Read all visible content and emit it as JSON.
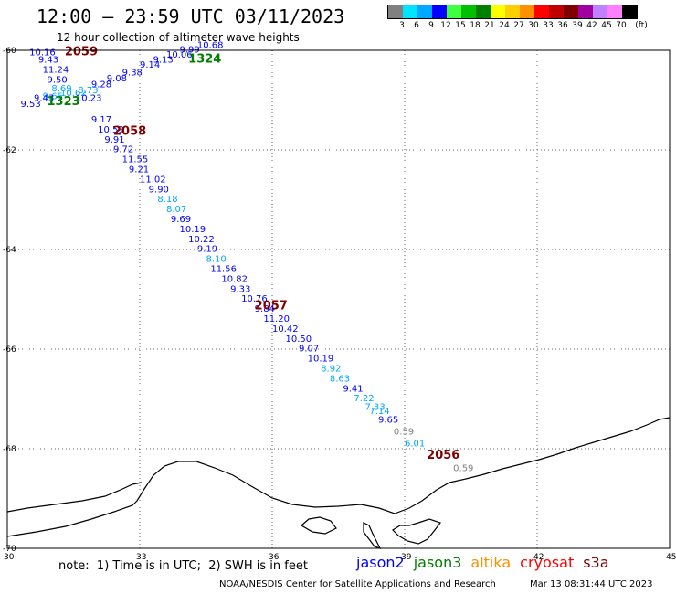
{
  "header": {
    "title": "12:00 – 23:59 UTC 03/11/2023",
    "subtitle": "12 hour collection of altimeter wave heights"
  },
  "legend": {
    "unit": "(ft)",
    "bins": [
      {
        "label": "",
        "color": "#808080"
      },
      {
        "label": "3",
        "color": "#00e5ff"
      },
      {
        "label": "6",
        "color": "#00a8ff"
      },
      {
        "label": "9",
        "color": "#0000ff"
      },
      {
        "label": "12",
        "color": "#40ff40"
      },
      {
        "label": "15",
        "color": "#00c000"
      },
      {
        "label": "18",
        "color": "#008000"
      },
      {
        "label": "21",
        "color": "#ffff00"
      },
      {
        "label": "24",
        "color": "#ffd000"
      },
      {
        "label": "27",
        "color": "#ff9000"
      },
      {
        "label": "30",
        "color": "#ff0000"
      },
      {
        "label": "33",
        "color": "#c00000"
      },
      {
        "label": "36",
        "color": "#800000"
      },
      {
        "label": "39",
        "color": "#a000a0"
      },
      {
        "label": "42",
        "color": "#c080ff"
      },
      {
        "label": "45",
        "color": "#ff80ff"
      },
      {
        "label": "70",
        "color": "#000000"
      }
    ]
  },
  "axes": {
    "lat_labels": [
      "-60",
      "-62",
      "-64",
      "-66",
      "-68",
      "-70"
    ],
    "lon_labels": [
      "30",
      "33",
      "36",
      "39",
      "42",
      "45"
    ]
  },
  "map_extent": {
    "lon": [
      30,
      45
    ],
    "lat": [
      -70,
      -60
    ]
  },
  "pass_labels": [
    {
      "text": "2059",
      "lon": 31.3,
      "lat": -60.1,
      "color": "#800000"
    },
    {
      "text": "1324",
      "lon": 34.1,
      "lat": -60.25,
      "color": "#008000"
    },
    {
      "text": "2058",
      "lon": 32.4,
      "lat": -61.7,
      "color": "#800000"
    },
    {
      "text": "1323",
      "lon": 30.9,
      "lat": -61.1,
      "color": "#008000"
    },
    {
      "text": "2057",
      "lon": 35.6,
      "lat": -65.2,
      "color": "#800000"
    },
    {
      "text": "2056",
      "lon": 39.5,
      "lat": -68.2,
      "color": "#800000"
    }
  ],
  "wave_heights": [
    {
      "v": "10.68",
      "lon": 34.3,
      "lat": -59.95,
      "color": "#0000ff"
    },
    {
      "v": "9.99",
      "lon": 33.9,
      "lat": -60.05,
      "color": "#0000ff"
    },
    {
      "v": "10.06",
      "lon": 33.6,
      "lat": -60.15,
      "color": "#0000ff"
    },
    {
      "v": "9.13",
      "lon": 33.3,
      "lat": -60.25,
      "color": "#0000ff"
    },
    {
      "v": "9.14",
      "lon": 33.0,
      "lat": -60.35,
      "color": "#0000ff"
    },
    {
      "v": "9.38",
      "lon": 32.6,
      "lat": -60.5,
      "color": "#0000ff"
    },
    {
      "v": "9.08",
      "lon": 32.25,
      "lat": -60.62,
      "color": "#0000ff"
    },
    {
      "v": "9.28",
      "lon": 31.9,
      "lat": -60.74,
      "color": "#0000ff"
    },
    {
      "v": "8.73",
      "lon": 31.6,
      "lat": -60.86,
      "color": "#00a8ff"
    },
    {
      "v": "10.62",
      "lon": 31.2,
      "lat": -60.92,
      "color": "#00a8ff"
    },
    {
      "v": "10.16",
      "lon": 30.5,
      "lat": -60.1,
      "color": "#0000ff"
    },
    {
      "v": "9.43",
      "lon": 30.7,
      "lat": -60.25,
      "color": "#0000ff"
    },
    {
      "v": "11.24",
      "lon": 30.8,
      "lat": -60.45,
      "color": "#0000ff"
    },
    {
      "v": "9.50",
      "lon": 30.9,
      "lat": -60.65,
      "color": "#0000ff"
    },
    {
      "v": "8.69",
      "lon": 31.0,
      "lat": -60.83,
      "color": "#00a8ff"
    },
    {
      "v": "9.65",
      "lon": 30.8,
      "lat": -60.98,
      "color": "#00a8ff"
    },
    {
      "v": "10.23",
      "lon": 31.55,
      "lat": -61.02,
      "color": "#0000ff"
    },
    {
      "v": "9.43",
      "lon": 30.6,
      "lat": -61.02,
      "color": "#0000ff"
    },
    {
      "v": "9.53",
      "lon": 30.3,
      "lat": -61.14,
      "color": "#0000ff"
    },
    {
      "v": "9.17",
      "lon": 31.9,
      "lat": -61.45,
      "color": "#0000ff"
    },
    {
      "v": "10.59",
      "lon": 32.05,
      "lat": -61.65,
      "color": "#0000ff"
    },
    {
      "v": "9.91",
      "lon": 32.2,
      "lat": -61.85,
      "color": "#0000ff"
    },
    {
      "v": "9.72",
      "lon": 32.4,
      "lat": -62.05,
      "color": "#0000ff"
    },
    {
      "v": "11.55",
      "lon": 32.6,
      "lat": -62.25,
      "color": "#0000ff"
    },
    {
      "v": "9.21",
      "lon": 32.75,
      "lat": -62.45,
      "color": "#0000ff"
    },
    {
      "v": "11.02",
      "lon": 33.0,
      "lat": -62.65,
      "color": "#0000ff"
    },
    {
      "v": "9.90",
      "lon": 33.2,
      "lat": -62.85,
      "color": "#0000ff"
    },
    {
      "v": "8.18",
      "lon": 33.4,
      "lat": -63.05,
      "color": "#00a8ff"
    },
    {
      "v": "8.07",
      "lon": 33.6,
      "lat": -63.25,
      "color": "#00a8ff"
    },
    {
      "v": "9.69",
      "lon": 33.7,
      "lat": -63.45,
      "color": "#0000ff"
    },
    {
      "v": "10.19",
      "lon": 33.9,
      "lat": -63.65,
      "color": "#0000ff"
    },
    {
      "v": "10.22",
      "lon": 34.1,
      "lat": -63.85,
      "color": "#0000ff"
    },
    {
      "v": "9.19",
      "lon": 34.3,
      "lat": -64.05,
      "color": "#0000ff"
    },
    {
      "v": "8.10",
      "lon": 34.5,
      "lat": -64.25,
      "color": "#00a8ff"
    },
    {
      "v": "11.56",
      "lon": 34.6,
      "lat": -64.45,
      "color": "#0000ff"
    },
    {
      "v": "10.82",
      "lon": 34.85,
      "lat": -64.65,
      "color": "#0000ff"
    },
    {
      "v": "9.33",
      "lon": 35.05,
      "lat": -64.85,
      "color": "#0000ff"
    },
    {
      "v": "10.76",
      "lon": 35.3,
      "lat": -65.05,
      "color": "#0000ff"
    },
    {
      "v": "9.84",
      "lon": 35.6,
      "lat": -65.25,
      "color": "#0000ff"
    },
    {
      "v": "11.20",
      "lon": 35.8,
      "lat": -65.45,
      "color": "#0000ff"
    },
    {
      "v": "10.42",
      "lon": 36.0,
      "lat": -65.65,
      "color": "#0000ff"
    },
    {
      "v": "10.50",
      "lon": 36.3,
      "lat": -65.85,
      "color": "#0000ff"
    },
    {
      "v": "9.07",
      "lon": 36.6,
      "lat": -66.05,
      "color": "#0000ff"
    },
    {
      "v": "10.19",
      "lon": 36.8,
      "lat": -66.25,
      "color": "#0000ff"
    },
    {
      "v": "8.92",
      "lon": 37.1,
      "lat": -66.45,
      "color": "#00a8ff"
    },
    {
      "v": "8.63",
      "lon": 37.3,
      "lat": -66.65,
      "color": "#00a8ff"
    },
    {
      "v": "9.41",
      "lon": 37.6,
      "lat": -66.85,
      "color": "#0000ff"
    },
    {
      "v": "7.22",
      "lon": 37.85,
      "lat": -67.05,
      "color": "#00a8ff"
    },
    {
      "v": "7.33",
      "lon": 38.1,
      "lat": -67.22,
      "color": "#00a8ff"
    },
    {
      "v": "7.14",
      "lon": 38.2,
      "lat": -67.3,
      "color": "#00a8ff"
    },
    {
      "v": "9.65",
      "lon": 38.4,
      "lat": -67.48,
      "color": "#0000ff"
    },
    {
      "v": "0.59",
      "lon": 38.75,
      "lat": -67.72,
      "color": "#808080"
    },
    {
      "v": "6.01",
      "lon": 39.0,
      "lat": -67.95,
      "color": "#00a8ff"
    },
    {
      "v": "0.59",
      "lon": 40.1,
      "lat": -68.45,
      "color": "#808080"
    }
  ],
  "footer": {
    "note": "note:  1) Time is in UTC;  2) SWH is in feet",
    "satellites": [
      {
        "name": "jason2",
        "color": "#0000ff"
      },
      {
        "name": "jason3",
        "color": "#008000"
      },
      {
        "name": "altika",
        "color": "#ff9000"
      },
      {
        "name": "cryosat",
        "color": "#ff0000"
      },
      {
        "name": "s3a",
        "color": "#800000"
      }
    ],
    "credit": "NOAA/NESDIS Center for Satellite Applications and Research",
    "timestamp": "Mar 13 08:31:44 UTC 2023"
  }
}
